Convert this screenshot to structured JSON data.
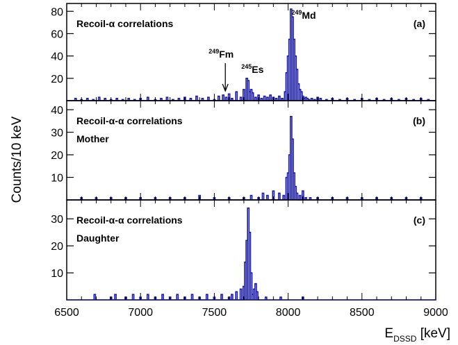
{
  "chart_data": [
    {
      "type": "histogram",
      "panel_label": "(a)",
      "title_lines": [
        "Recoil-α correlations"
      ],
      "xlim": [
        6500,
        9000
      ],
      "ylim": [
        0,
        87
      ],
      "yticks": [
        20,
        40,
        60,
        80
      ],
      "bin_width_keV": 10,
      "x": [
        6560,
        6600,
        6640,
        6680,
        6720,
        6760,
        6800,
        6840,
        6880,
        6920,
        6960,
        7000,
        7050,
        7100,
        7140,
        7180,
        7220,
        7260,
        7300,
        7340,
        7380,
        7420,
        7460,
        7500,
        7530,
        7560,
        7580,
        7600,
        7620,
        7650,
        7680,
        7700,
        7720,
        7730,
        7740,
        7750,
        7760,
        7780,
        7800,
        7820,
        7840,
        7860,
        7880,
        7900,
        7920,
        7940,
        7960,
        7980,
        7990,
        8000,
        8010,
        8020,
        8030,
        8040,
        8050,
        8060,
        8070,
        8080,
        8090,
        8100,
        8110,
        8120,
        8130,
        8140,
        8160,
        8180,
        8200,
        8220,
        8260,
        8300,
        8350,
        8400,
        8450,
        8500,
        8550,
        8600,
        8650,
        8700,
        8750,
        8800,
        8850,
        8900,
        8950
      ],
      "y": [
        2,
        1,
        2,
        1,
        3,
        2,
        1,
        2,
        1,
        2,
        1,
        2,
        3,
        1,
        2,
        3,
        1,
        2,
        3,
        2,
        4,
        2,
        3,
        1,
        4,
        5,
        3,
        6,
        2,
        8,
        3,
        10,
        20,
        18,
        8,
        10,
        7,
        3,
        5,
        2,
        4,
        3,
        5,
        3,
        2,
        4,
        2,
        8,
        25,
        40,
        55,
        82,
        75,
        55,
        40,
        28,
        15,
        10,
        8,
        4,
        2,
        3,
        2,
        1,
        2,
        1,
        3,
        2,
        1,
        2,
        1,
        2,
        1,
        2,
        1,
        2,
        1,
        2,
        1,
        2,
        1,
        2,
        1
      ],
      "annotations": [
        {
          "mass": "249",
          "symbol": "Fm",
          "x": 7565
        },
        {
          "mass": "245",
          "symbol": "Es",
          "x": 7730
        },
        {
          "mass": "249",
          "symbol": "Md",
          "x": 8060
        }
      ]
    },
    {
      "type": "histogram",
      "panel_label": "(b)",
      "title_lines": [
        "Recoil-α-α correlations",
        "Mother"
      ],
      "xlim": [
        6500,
        9000
      ],
      "ylim": [
        0,
        44
      ],
      "yticks": [
        10,
        20,
        30,
        40
      ],
      "bin_width_keV": 10,
      "x": [
        6600,
        6700,
        6800,
        6900,
        7000,
        7100,
        7200,
        7300,
        7400,
        7500,
        7600,
        7700,
        7750,
        7800,
        7830,
        7860,
        7900,
        7940,
        7970,
        7990,
        8000,
        8010,
        8020,
        8030,
        8040,
        8050,
        8060,
        8080,
        8100,
        8120,
        8150,
        8200,
        8300,
        8400,
        8500,
        8600,
        8700,
        8800,
        8900
      ],
      "y": [
        1,
        1,
        1,
        1,
        1,
        1,
        1,
        1,
        2,
        1,
        1,
        1,
        2,
        1,
        3,
        2,
        4,
        3,
        2,
        10,
        12,
        20,
        37,
        27,
        12,
        6,
        3,
        2,
        4,
        1,
        1,
        1,
        1,
        1,
        1,
        1,
        1,
        1,
        1
      ]
    },
    {
      "type": "histogram",
      "panel_label": "(c)",
      "title_lines": [
        "Recoil-α-α correlations",
        "Daughter"
      ],
      "xlim": [
        6500,
        9000
      ],
      "ylim": [
        0,
        37
      ],
      "yticks": [
        10,
        20,
        30
      ],
      "bin_width_keV": 10,
      "xlabel": "E_DSSD [keV]",
      "xticks": [
        6500,
        7000,
        7500,
        8000,
        8500,
        9000
      ],
      "x": [
        6690,
        6800,
        6830,
        6900,
        6950,
        7000,
        7050,
        7100,
        7150,
        7200,
        7250,
        7300,
        7350,
        7400,
        7450,
        7500,
        7550,
        7600,
        7620,
        7650,
        7680,
        7700,
        7710,
        7720,
        7730,
        7740,
        7750,
        7760,
        7770,
        7780,
        7790,
        7850,
        7950,
        8100
      ],
      "y": [
        2,
        1,
        2,
        1,
        2,
        1,
        2,
        1,
        2,
        1,
        2,
        1,
        2,
        1,
        2,
        1,
        2,
        1,
        2,
        3,
        4,
        5,
        14,
        22,
        34,
        25,
        10,
        2,
        4,
        6,
        3,
        1,
        1,
        1
      ]
    }
  ],
  "shared": {
    "ylabel": "Counts/10 keV",
    "xlabel_main": "E",
    "xlabel_sub": "DSSD",
    "xlabel_unit": " [keV]",
    "line_color": "#1a1aa8",
    "axis_color": "#000000"
  }
}
